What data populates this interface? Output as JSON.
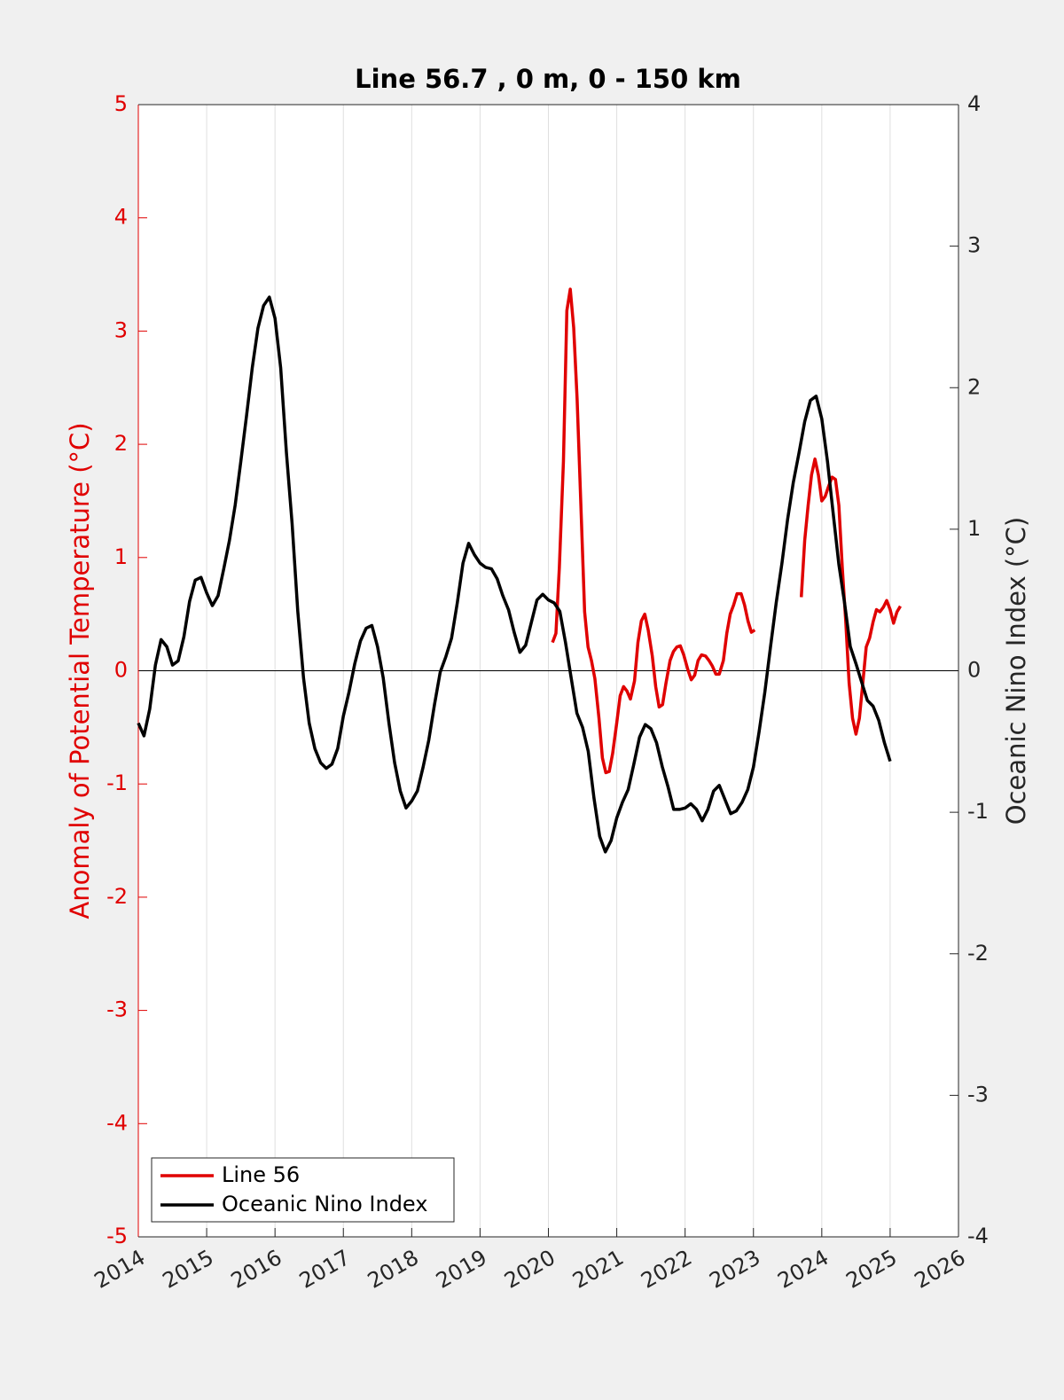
{
  "chart_data": {
    "type": "line",
    "title": "Line 56.7 , 0 m, 0 - 150 km",
    "ylabel": "Anomaly of Potential Temperature (°C)",
    "y2label": "Oceanic Nino Index (°C)",
    "ycolor": "#e00000",
    "xlim": [
      2014,
      2026
    ],
    "xticks": [
      2014,
      2015,
      2016,
      2017,
      2018,
      2019,
      2020,
      2021,
      2022,
      2023,
      2024,
      2025,
      2026
    ],
    "ylim": [
      -5,
      5
    ],
    "yticks": [
      -5,
      -4,
      -3,
      -2,
      -1,
      0,
      1,
      2,
      3,
      4,
      5
    ],
    "y2lim": [
      -4,
      4
    ],
    "y2ticks": [
      -4,
      -3,
      -2,
      -1,
      0,
      1,
      2,
      3,
      4
    ],
    "grid": "x",
    "zero_line": true,
    "legend": "lower left",
    "series": [
      {
        "name": "Line 56",
        "color": "#e00000",
        "axis": "y",
        "x": [
          2020.06,
          2020.11,
          2020.16,
          2020.22,
          2020.27,
          2020.32,
          2020.37,
          2020.42,
          2020.48,
          2020.53,
          2020.58,
          2020.63,
          2020.68,
          2020.74,
          2020.79,
          2020.84,
          2020.89,
          2020.94,
          2021.0,
          2021.05,
          2021.1,
          2021.15,
          2021.2,
          2021.26,
          2021.31,
          2021.36,
          2021.41,
          2021.46,
          2021.52,
          2021.57,
          2021.62,
          2021.67,
          2021.72,
          2021.78,
          2021.83,
          2021.88,
          2021.93,
          2021.98,
          2022.04,
          2022.09,
          2022.14,
          2022.19,
          2022.24,
          2022.3,
          2022.35,
          2022.4,
          2022.45,
          2022.5,
          2022.56,
          2022.61,
          2022.66,
          2022.71,
          2022.76,
          2022.82,
          2022.87,
          2022.92,
          2022.97,
          2023.02,
          2023.36,
          2023.7,
          2023.75,
          2023.8,
          2023.85,
          2023.9,
          2023.95,
          2024.0,
          2024.05,
          2024.1,
          2024.15,
          2024.2,
          2024.25,
          2024.3,
          2024.35,
          2024.4,
          2024.45,
          2024.5,
          2024.55,
          2024.6,
          2024.65,
          2024.7,
          2024.75,
          2024.8,
          2024.85,
          2024.9,
          2024.95,
          2025.0,
          2025.05,
          2025.1,
          2025.15
        ],
        "values": [
          0.25,
          0.33,
          0.91,
          1.85,
          3.18,
          3.37,
          3.03,
          2.4,
          1.38,
          0.52,
          0.21,
          0.09,
          -0.07,
          -0.42,
          -0.77,
          -0.9,
          -0.89,
          -0.73,
          -0.46,
          -0.22,
          -0.14,
          -0.18,
          -0.25,
          -0.09,
          0.25,
          0.44,
          0.5,
          0.36,
          0.13,
          -0.14,
          -0.32,
          -0.3,
          -0.11,
          0.09,
          0.17,
          0.21,
          0.22,
          0.14,
          0.01,
          -0.08,
          -0.04,
          0.09,
          0.14,
          0.13,
          0.09,
          0.04,
          -0.03,
          -0.03,
          0.09,
          0.33,
          0.5,
          0.58,
          0.68,
          0.68,
          0.58,
          0.44,
          0.34,
          0.36,
          null,
          0.65,
          1.15,
          1.46,
          1.73,
          1.87,
          1.73,
          1.5,
          1.54,
          1.63,
          1.71,
          1.69,
          1.46,
          0.91,
          0.44,
          -0.11,
          -0.42,
          -0.56,
          -0.42,
          -0.11,
          0.21,
          0.29,
          0.43,
          0.54,
          0.52,
          0.56,
          0.62,
          0.54,
          0.42,
          0.52,
          0.57
        ]
      },
      {
        "name": "Oceanic Nino Index",
        "color": "#000000",
        "axis": "y2",
        "x": [
          2014,
          2014.083,
          2014.167,
          2014.25,
          2014.333,
          2014.417,
          2014.5,
          2014.583,
          2014.667,
          2014.75,
          2014.833,
          2014.917,
          2015,
          2015.083,
          2015.167,
          2015.25,
          2015.333,
          2015.417,
          2015.5,
          2015.583,
          2015.667,
          2015.75,
          2015.833,
          2015.917,
          2016,
          2016.083,
          2016.167,
          2016.25,
          2016.333,
          2016.417,
          2016.5,
          2016.583,
          2016.667,
          2016.75,
          2016.833,
          2016.917,
          2017,
          2017.083,
          2017.167,
          2017.25,
          2017.333,
          2017.417,
          2017.5,
          2017.583,
          2017.667,
          2017.75,
          2017.833,
          2017.917,
          2018,
          2018.083,
          2018.167,
          2018.25,
          2018.333,
          2018.417,
          2018.5,
          2018.583,
          2018.667,
          2018.75,
          2018.833,
          2018.917,
          2019,
          2019.083,
          2019.167,
          2019.25,
          2019.333,
          2019.417,
          2019.5,
          2019.583,
          2019.667,
          2019.75,
          2019.833,
          2019.917,
          2020,
          2020.083,
          2020.167,
          2020.25,
          2020.333,
          2020.417,
          2020.5,
          2020.583,
          2020.667,
          2020.75,
          2020.833,
          2020.917,
          2021,
          2021.083,
          2021.167,
          2021.25,
          2021.333,
          2021.417,
          2021.5,
          2021.583,
          2021.667,
          2021.75,
          2021.833,
          2021.917,
          2022,
          2022.083,
          2022.167,
          2022.25,
          2022.333,
          2022.417,
          2022.5,
          2022.583,
          2022.667,
          2022.75,
          2022.833,
          2022.917,
          2023,
          2023.083,
          2023.167,
          2023.25,
          2023.333,
          2023.417,
          2023.5,
          2023.583,
          2023.667,
          2023.75,
          2023.833,
          2023.917,
          2024,
          2024.083,
          2024.167,
          2024.25,
          2024.333,
          2024.417,
          2024.5,
          2024.583,
          2024.667,
          2024.75,
          2024.833,
          2024.917,
          2025
        ],
        "values": [
          -0.37,
          -0.46,
          -0.27,
          0.04,
          0.22,
          0.17,
          0.04,
          0.07,
          0.24,
          0.49,
          0.64,
          0.66,
          0.55,
          0.46,
          0.53,
          0.72,
          0.92,
          1.17,
          1.48,
          1.8,
          2.14,
          2.42,
          2.58,
          2.64,
          2.49,
          2.14,
          1.54,
          1.04,
          0.42,
          -0.05,
          -0.37,
          -0.55,
          -0.65,
          -0.69,
          -0.66,
          -0.55,
          -0.32,
          -0.15,
          0.05,
          0.21,
          0.3,
          0.32,
          0.17,
          -0.05,
          -0.37,
          -0.65,
          -0.85,
          -0.97,
          -0.92,
          -0.85,
          -0.68,
          -0.49,
          -0.24,
          -0.01,
          0.1,
          0.23,
          0.48,
          0.76,
          0.9,
          0.82,
          0.76,
          0.73,
          0.72,
          0.65,
          0.53,
          0.43,
          0.27,
          0.13,
          0.18,
          0.34,
          0.5,
          0.54,
          0.5,
          0.48,
          0.42,
          0.2,
          -0.05,
          -0.3,
          -0.4,
          -0.57,
          -0.9,
          -1.17,
          -1.28,
          -1.2,
          -1.04,
          -0.93,
          -0.84,
          -0.66,
          -0.47,
          -0.38,
          -0.41,
          -0.51,
          -0.68,
          -0.82,
          -0.98,
          -0.98,
          -0.97,
          -0.94,
          -0.98,
          -1.06,
          -0.98,
          -0.85,
          -0.81,
          -0.91,
          -1.01,
          -0.99,
          -0.93,
          -0.84,
          -0.68,
          -0.43,
          -0.15,
          0.17,
          0.48,
          0.76,
          1.07,
          1.33,
          1.54,
          1.76,
          1.91,
          1.94,
          1.78,
          1.48,
          1.11,
          0.75,
          0.48,
          0.17,
          0.05,
          -0.08,
          -0.21,
          -0.25,
          -0.35,
          -0.51,
          -0.64
        ]
      }
    ]
  }
}
